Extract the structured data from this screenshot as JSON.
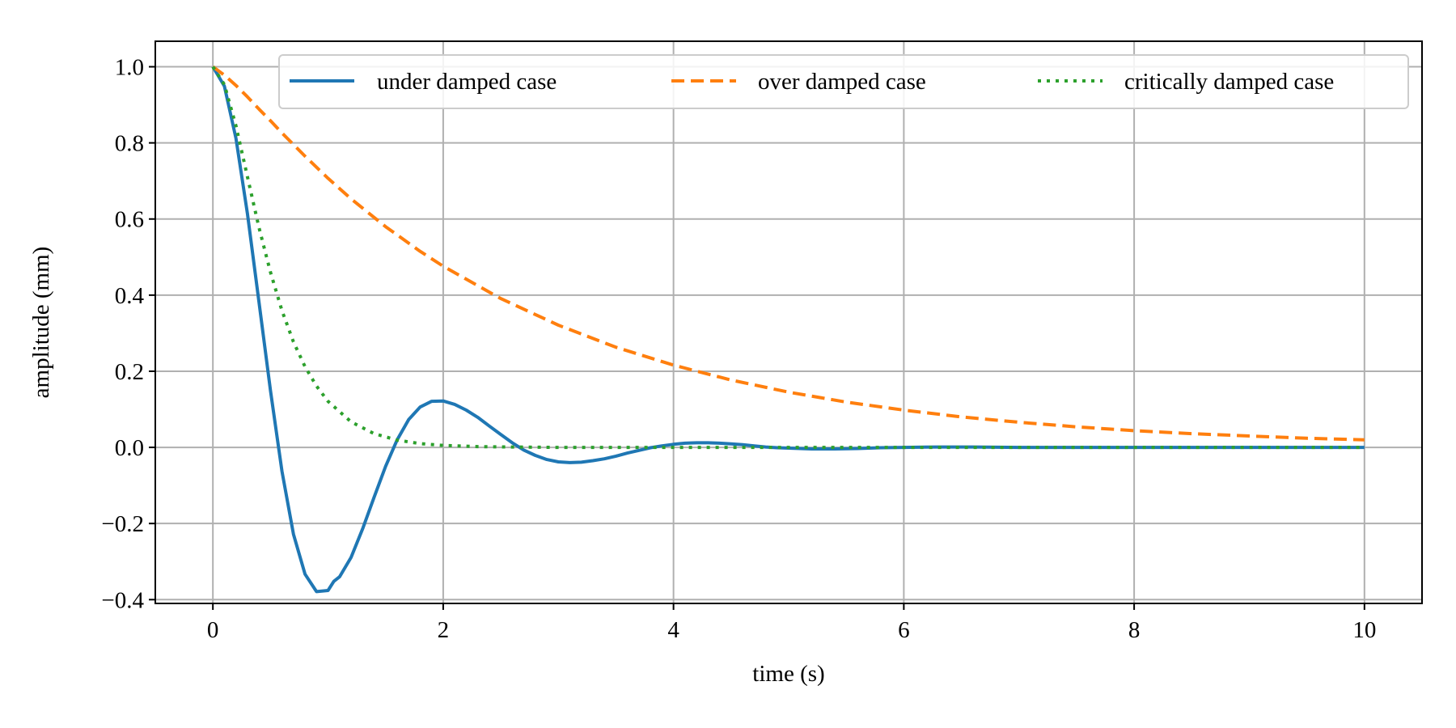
{
  "chart_data": {
    "type": "line",
    "title": "",
    "xlabel": "time (s)",
    "ylabel": "amplitude (mm)",
    "xlim": [
      -0.5,
      10.5
    ],
    "ylim": [
      -0.41,
      1.067
    ],
    "grid": true,
    "legend_position": "top-right",
    "x_ticks": [
      {
        "value": 0,
        "label": "0"
      },
      {
        "value": 2,
        "label": "2"
      },
      {
        "value": 4,
        "label": "4"
      },
      {
        "value": 6,
        "label": "6"
      },
      {
        "value": 8,
        "label": "8"
      },
      {
        "value": 10,
        "label": "10"
      }
    ],
    "y_ticks": [
      {
        "value": 1.0,
        "label": "1.0"
      },
      {
        "value": 0.8,
        "label": "0.8"
      },
      {
        "value": 0.6,
        "label": "0.6"
      },
      {
        "value": 0.4,
        "label": "0.4"
      },
      {
        "value": 0.2,
        "label": "0.2"
      },
      {
        "value": 0.0,
        "label": "0.0"
      },
      {
        "value": -0.2,
        "label": "−0.2"
      },
      {
        "value": -0.4,
        "label": "−0.4"
      }
    ],
    "series": [
      {
        "name": "under damped case",
        "color": "#1f77b4",
        "style": "solid",
        "x": [
          0,
          0.1,
          0.2,
          0.3,
          0.4,
          0.5,
          0.6,
          0.7,
          0.8,
          0.9,
          1.0,
          1.05,
          1.1,
          1.2,
          1.3,
          1.4,
          1.5,
          1.6,
          1.7,
          1.8,
          1.9,
          2.0,
          2.1,
          2.2,
          2.3,
          2.4,
          2.5,
          2.6,
          2.7,
          2.8,
          2.9,
          3.0,
          3.1,
          3.2,
          3.3,
          3.4,
          3.5,
          3.6,
          3.7,
          3.8,
          3.9,
          4.0,
          4.1,
          4.2,
          4.3,
          4.4,
          4.5,
          4.6,
          4.7,
          4.8,
          4.9,
          5.0,
          5.2,
          5.4,
          5.6,
          5.8,
          6.0,
          6.3,
          6.6,
          7.0,
          7.5,
          8.0,
          9.0,
          10.0
        ],
        "y": [
          1.0,
          0.949,
          0.812,
          0.614,
          0.383,
          0.149,
          -0.063,
          -0.228,
          -0.333,
          -0.379,
          -0.376,
          -0.352,
          -0.34,
          -0.289,
          -0.214,
          -0.131,
          -0.05,
          0.02,
          0.073,
          0.106,
          0.121,
          0.122,
          0.113,
          0.098,
          0.079,
          0.056,
          0.034,
          0.012,
          -0.007,
          -0.021,
          -0.032,
          -0.038,
          -0.04,
          -0.039,
          -0.035,
          -0.03,
          -0.023,
          -0.015,
          -0.008,
          -0.001,
          0.004,
          0.008,
          0.011,
          0.012,
          0.012,
          0.011,
          0.009,
          0.007,
          0.004,
          0.001,
          -0.001,
          -0.002,
          -0.004,
          -0.004,
          -0.003,
          -0.001,
          0.0,
          0.001,
          0.001,
          0.0,
          0.0,
          0.0,
          0.0,
          0.0
        ]
      },
      {
        "name": "over damped case",
        "color": "#ff7f0e",
        "style": "dashed",
        "x": [
          0,
          0.1,
          0.2,
          0.3,
          0.4,
          0.5,
          0.6,
          0.8,
          1.0,
          1.2,
          1.5,
          1.8,
          2.0,
          2.5,
          3.0,
          3.5,
          4.0,
          4.5,
          5.0,
          5.5,
          6.0,
          6.5,
          7.0,
          7.5,
          8.0,
          8.5,
          9.0,
          9.5,
          10.0
        ],
        "y": [
          1.0,
          0.978,
          0.951,
          0.921,
          0.889,
          0.858,
          0.826,
          0.765,
          0.707,
          0.653,
          0.58,
          0.515,
          0.476,
          0.391,
          0.321,
          0.263,
          0.216,
          0.177,
          0.145,
          0.119,
          0.098,
          0.08,
          0.066,
          0.054,
          0.044,
          0.036,
          0.03,
          0.024,
          0.02
        ]
      },
      {
        "name": "critically damped case",
        "color": "#2ca02c",
        "style": "dotted",
        "x": [
          0,
          0.1,
          0.2,
          0.3,
          0.4,
          0.5,
          0.6,
          0.7,
          0.8,
          0.9,
          1.0,
          1.2,
          1.4,
          1.6,
          1.8,
          2.0,
          2.3,
          2.6,
          3.0,
          3.5,
          4.0,
          5.0,
          6.0,
          8.0,
          10.0
        ],
        "y": [
          1.0,
          0.953,
          0.845,
          0.711,
          0.578,
          0.46,
          0.359,
          0.277,
          0.212,
          0.161,
          0.121,
          0.067,
          0.036,
          0.019,
          0.01,
          0.005,
          0.002,
          0.001,
          0.0,
          0.0,
          0.0,
          0.0,
          0.0,
          0.0,
          0.0
        ]
      }
    ]
  }
}
